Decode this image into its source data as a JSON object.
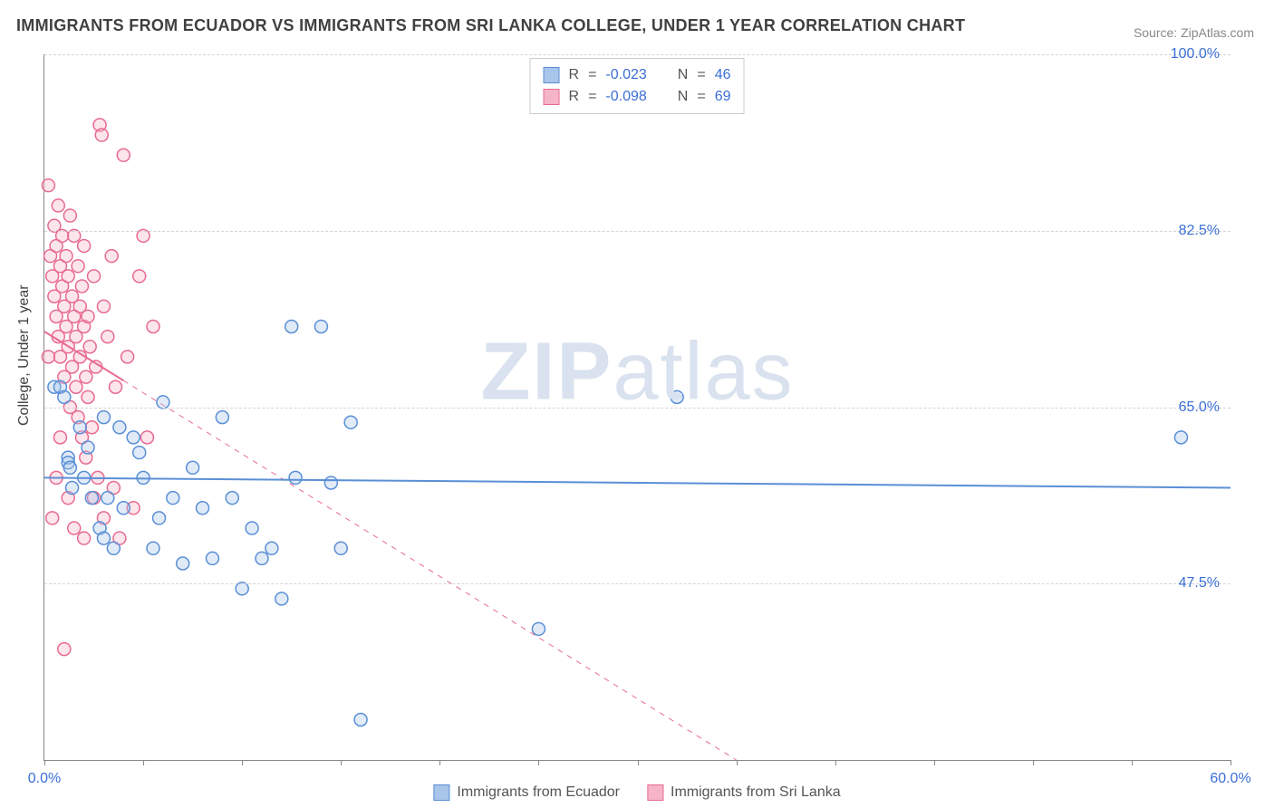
{
  "title": "IMMIGRANTS FROM ECUADOR VS IMMIGRANTS FROM SRI LANKA COLLEGE, UNDER 1 YEAR CORRELATION CHART",
  "source": "Source: ZipAtlas.com",
  "ylabel": "College, Under 1 year",
  "watermark_bold": "ZIP",
  "watermark_rest": "atlas",
  "chart": {
    "type": "scatter",
    "background_color": "#ffffff",
    "grid_color": "#d5d5d5",
    "axis_color": "#888888",
    "xlim": [
      0,
      60
    ],
    "ylim": [
      30,
      100
    ],
    "x_ticks": [
      0,
      5,
      10,
      15,
      20,
      25,
      30,
      35,
      40,
      45,
      50,
      55,
      60
    ],
    "x_tick_labels": {
      "0": "0.0%",
      "60": "60.0%"
    },
    "y_ticks": [
      47.5,
      65.0,
      82.5,
      100.0
    ],
    "y_tick_labels": [
      "47.5%",
      "65.0%",
      "82.5%",
      "100.0%"
    ],
    "marker_radius": 7,
    "marker_stroke_width": 1.5,
    "marker_fill_opacity": 0.35,
    "line_width": 2,
    "label_fontsize": 16,
    "title_fontsize": 18,
    "tick_color": "#3b6fd6"
  },
  "series": {
    "ecuador": {
      "label": "Immigrants from Ecuador",
      "color_stroke": "#5a8fd6",
      "color_fill": "#a8c5ea",
      "R": "-0.023",
      "N": "46",
      "trend": {
        "x1": 0,
        "y1": 58.0,
        "x2": 60,
        "y2": 57.0,
        "solid_until_x": 60
      },
      "points": [
        [
          0.5,
          67
        ],
        [
          0.8,
          67
        ],
        [
          1.0,
          66
        ],
        [
          1.2,
          60
        ],
        [
          1.2,
          59.5
        ],
        [
          1.3,
          59
        ],
        [
          1.4,
          57
        ],
        [
          1.8,
          63
        ],
        [
          2.0,
          58
        ],
        [
          2.2,
          61
        ],
        [
          2.4,
          56
        ],
        [
          2.8,
          53
        ],
        [
          3.0,
          64
        ],
        [
          3.0,
          52
        ],
        [
          3.2,
          56
        ],
        [
          3.5,
          51
        ],
        [
          3.8,
          63
        ],
        [
          4.0,
          55
        ],
        [
          4.5,
          62
        ],
        [
          4.8,
          60.5
        ],
        [
          5.0,
          58
        ],
        [
          5.5,
          51
        ],
        [
          5.8,
          54
        ],
        [
          6.0,
          65.5
        ],
        [
          6.5,
          56
        ],
        [
          7.0,
          49.5
        ],
        [
          7.5,
          59
        ],
        [
          8.0,
          55
        ],
        [
          8.5,
          50
        ],
        [
          9.0,
          64
        ],
        [
          9.5,
          56
        ],
        [
          10.0,
          47
        ],
        [
          10.5,
          53
        ],
        [
          11.0,
          50
        ],
        [
          11.5,
          51
        ],
        [
          12.0,
          46
        ],
        [
          12.5,
          73
        ],
        [
          12.7,
          58
        ],
        [
          14.0,
          73
        ],
        [
          14.5,
          57.5
        ],
        [
          15.0,
          51
        ],
        [
          15.5,
          63.5
        ],
        [
          16.0,
          34
        ],
        [
          25.0,
          43
        ],
        [
          32.0,
          66
        ],
        [
          57.5,
          62
        ]
      ]
    },
    "srilanka": {
      "label": "Immigrants from Sri Lanka",
      "color_stroke": "#e86b8f",
      "color_fill": "#f5b4c7",
      "R": "-0.098",
      "N": "69",
      "trend": {
        "x1": 0,
        "y1": 72.5,
        "x2": 35,
        "y2": 30,
        "solid_until_x": 4
      },
      "points": [
        [
          0.2,
          87
        ],
        [
          0.3,
          80
        ],
        [
          0.4,
          78
        ],
        [
          0.5,
          83
        ],
        [
          0.5,
          76
        ],
        [
          0.6,
          81
        ],
        [
          0.6,
          74
        ],
        [
          0.7,
          85
        ],
        [
          0.7,
          72
        ],
        [
          0.8,
          79
        ],
        [
          0.8,
          70
        ],
        [
          0.9,
          77
        ],
        [
          0.9,
          82
        ],
        [
          1.0,
          75
        ],
        [
          1.0,
          68
        ],
        [
          1.1,
          73
        ],
        [
          1.1,
          80
        ],
        [
          1.2,
          78
        ],
        [
          1.2,
          71
        ],
        [
          1.3,
          84
        ],
        [
          1.3,
          65
        ],
        [
          1.4,
          76
        ],
        [
          1.4,
          69
        ],
        [
          1.5,
          74
        ],
        [
          1.5,
          82
        ],
        [
          1.6,
          72
        ],
        [
          1.6,
          67
        ],
        [
          1.7,
          79
        ],
        [
          1.7,
          64
        ],
        [
          1.8,
          75
        ],
        [
          1.8,
          70
        ],
        [
          1.9,
          77
        ],
        [
          1.9,
          62
        ],
        [
          2.0,
          73
        ],
        [
          2.0,
          81
        ],
        [
          2.1,
          68
        ],
        [
          2.1,
          60
        ],
        [
          2.2,
          74
        ],
        [
          2.2,
          66
        ],
        [
          2.3,
          71
        ],
        [
          2.4,
          63
        ],
        [
          2.5,
          78
        ],
        [
          2.5,
          56
        ],
        [
          2.6,
          69
        ],
        [
          2.7,
          58
        ],
        [
          2.8,
          93
        ],
        [
          2.9,
          92
        ],
        [
          3.0,
          75
        ],
        [
          3.0,
          54
        ],
        [
          3.2,
          72
        ],
        [
          3.4,
          80
        ],
        [
          3.5,
          57
        ],
        [
          3.6,
          67
        ],
        [
          3.8,
          52
        ],
        [
          4.0,
          90
        ],
        [
          4.2,
          70
        ],
        [
          4.5,
          55
        ],
        [
          4.8,
          78
        ],
        [
          5.0,
          82
        ],
        [
          5.2,
          62
        ],
        [
          5.5,
          73
        ],
        [
          0.2,
          70
        ],
        [
          0.4,
          54
        ],
        [
          0.6,
          58
        ],
        [
          1.0,
          41
        ],
        [
          1.5,
          53
        ],
        [
          2.0,
          52
        ],
        [
          1.2,
          56
        ],
        [
          0.8,
          62
        ]
      ]
    }
  },
  "legend_top_labels": {
    "R": "R",
    "N": "N",
    "eq": "="
  },
  "legend_bottom": {}
}
